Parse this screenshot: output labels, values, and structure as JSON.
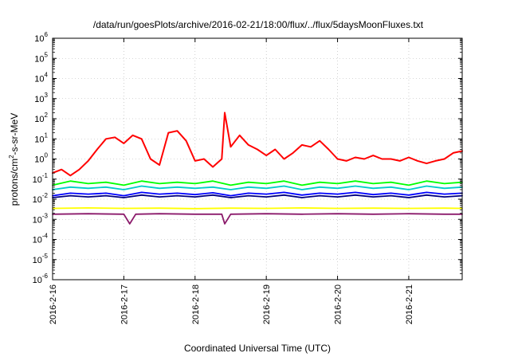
{
  "chart_data": {
    "type": "line",
    "title": "/data/run/goesPlots/archive/2016-02-21/18:00/flux/../flux/5daysMoonFluxes.txt",
    "xlabel": "Coordinated Universal Time (UTC)",
    "ylabel": "protons/cm²-s-sr-MeV",
    "ylabel_parts": {
      "pre": "protons/cm",
      "sup": "2",
      "post": "-s-sr-MeV"
    },
    "yscale": "log",
    "ylim": [
      1e-06,
      1000000.0
    ],
    "yticks": [
      {
        "base": "10",
        "exp": "-6",
        "value": 1e-06
      },
      {
        "base": "10",
        "exp": "-5",
        "value": 1e-05
      },
      {
        "base": "10",
        "exp": "-4",
        "value": 0.0001
      },
      {
        "base": "10",
        "exp": "-3",
        "value": 0.001
      },
      {
        "base": "10",
        "exp": "-2",
        "value": 0.01
      },
      {
        "base": "10",
        "exp": "-1",
        "value": 0.1
      },
      {
        "base": "10",
        "exp": "0",
        "value": 1
      },
      {
        "base": "10",
        "exp": "1",
        "value": 10
      },
      {
        "base": "10",
        "exp": "2",
        "value": 100
      },
      {
        "base": "10",
        "exp": "3",
        "value": 1000
      },
      {
        "base": "10",
        "exp": "4",
        "value": 10000
      },
      {
        "base": "10",
        "exp": "5",
        "value": 100000
      },
      {
        "base": "10",
        "exp": "6",
        "value": 1000000
      }
    ],
    "xlim": [
      "2016-02-16 00:00",
      "2016-02-21 18:00"
    ],
    "xticks": [
      "2016-2-16",
      "2016-2-17",
      "2016-2-18",
      "2016-2-19",
      "2016-2-20",
      "2016-2-21"
    ],
    "grid": true,
    "legend": "none",
    "series": [
      {
        "color": "#ff0000",
        "x": [
          "2016-02-16 00:00",
          "2016-02-16 03:00",
          "2016-02-16 06:00",
          "2016-02-16 09:00",
          "2016-02-16 12:00",
          "2016-02-16 15:00",
          "2016-02-16 18:00",
          "2016-02-16 21:00",
          "2016-02-17 00:00",
          "2016-02-17 03:00",
          "2016-02-17 06:00",
          "2016-02-17 09:00",
          "2016-02-17 12:00",
          "2016-02-17 15:00",
          "2016-02-17 18:00",
          "2016-02-17 21:00",
          "2016-02-18 00:00",
          "2016-02-18 03:00",
          "2016-02-18 06:00",
          "2016-02-18 09:00",
          "2016-02-18 10:00",
          "2016-02-18 12:00",
          "2016-02-18 15:00",
          "2016-02-18 18:00",
          "2016-02-18 21:00",
          "2016-02-19 00:00",
          "2016-02-19 03:00",
          "2016-02-19 06:00",
          "2016-02-19 09:00",
          "2016-02-19 12:00",
          "2016-02-19 15:00",
          "2016-02-19 18:00",
          "2016-02-19 21:00",
          "2016-02-20 00:00",
          "2016-02-20 03:00",
          "2016-02-20 06:00",
          "2016-02-20 09:00",
          "2016-02-20 12:00",
          "2016-02-20 15:00",
          "2016-02-20 18:00",
          "2016-02-20 21:00",
          "2016-02-21 00:00",
          "2016-02-21 03:00",
          "2016-02-21 06:00",
          "2016-02-21 09:00",
          "2016-02-21 12:00",
          "2016-02-21 15:00",
          "2016-02-21 18:00"
        ],
        "values": [
          0.2,
          0.3,
          0.15,
          0.3,
          0.8,
          3,
          10,
          12,
          6,
          15,
          10,
          1,
          0.5,
          20,
          25,
          8,
          0.8,
          1,
          0.4,
          1,
          200,
          4,
          15,
          5,
          3,
          1.5,
          3,
          1,
          2,
          5,
          4,
          8,
          3,
          1,
          0.8,
          1.2,
          1,
          1.5,
          1,
          1,
          0.8,
          1.2,
          0.8,
          0.6,
          0.8,
          1,
          2,
          2.5
        ]
      },
      {
        "color": "#00ff00",
        "x": [
          "2016-02-16 00:00",
          "2016-02-16 06:00",
          "2016-02-16 12:00",
          "2016-02-16 18:00",
          "2016-02-17 00:00",
          "2016-02-17 06:00",
          "2016-02-17 12:00",
          "2016-02-17 18:00",
          "2016-02-18 00:00",
          "2016-02-18 06:00",
          "2016-02-18 12:00",
          "2016-02-18 18:00",
          "2016-02-19 00:00",
          "2016-02-19 06:00",
          "2016-02-19 12:00",
          "2016-02-19 18:00",
          "2016-02-20 00:00",
          "2016-02-20 06:00",
          "2016-02-20 12:00",
          "2016-02-20 18:00",
          "2016-02-21 00:00",
          "2016-02-21 06:00",
          "2016-02-21 12:00",
          "2016-02-21 18:00"
        ],
        "values": [
          0.05,
          0.08,
          0.06,
          0.07,
          0.05,
          0.08,
          0.06,
          0.07,
          0.06,
          0.08,
          0.05,
          0.07,
          0.06,
          0.08,
          0.05,
          0.07,
          0.06,
          0.08,
          0.06,
          0.07,
          0.05,
          0.08,
          0.06,
          0.07
        ]
      },
      {
        "color": "#00cccc",
        "x": [
          "2016-02-16 00:00",
          "2016-02-16 06:00",
          "2016-02-16 12:00",
          "2016-02-16 18:00",
          "2016-02-17 00:00",
          "2016-02-17 06:00",
          "2016-02-17 12:00",
          "2016-02-17 18:00",
          "2016-02-18 00:00",
          "2016-02-18 06:00",
          "2016-02-18 12:00",
          "2016-02-18 18:00",
          "2016-02-19 00:00",
          "2016-02-19 06:00",
          "2016-02-19 12:00",
          "2016-02-19 18:00",
          "2016-02-20 00:00",
          "2016-02-20 06:00",
          "2016-02-20 12:00",
          "2016-02-20 18:00",
          "2016-02-21 00:00",
          "2016-02-21 06:00",
          "2016-02-21 12:00",
          "2016-02-21 18:00"
        ],
        "values": [
          0.03,
          0.04,
          0.035,
          0.04,
          0.03,
          0.045,
          0.035,
          0.04,
          0.035,
          0.04,
          0.03,
          0.04,
          0.035,
          0.045,
          0.03,
          0.04,
          0.035,
          0.045,
          0.035,
          0.04,
          0.03,
          0.045,
          0.035,
          0.04
        ]
      },
      {
        "color": "#0000ff",
        "x": [
          "2016-02-16 00:00",
          "2016-02-16 06:00",
          "2016-02-16 12:00",
          "2016-02-16 18:00",
          "2016-02-17 00:00",
          "2016-02-17 06:00",
          "2016-02-17 12:00",
          "2016-02-17 18:00",
          "2016-02-18 00:00",
          "2016-02-18 06:00",
          "2016-02-18 12:00",
          "2016-02-18 18:00",
          "2016-02-19 00:00",
          "2016-02-19 06:00",
          "2016-02-19 12:00",
          "2016-02-19 18:00",
          "2016-02-20 00:00",
          "2016-02-20 06:00",
          "2016-02-20 12:00",
          "2016-02-20 18:00",
          "2016-02-21 00:00",
          "2016-02-21 06:00",
          "2016-02-21 12:00",
          "2016-02-21 18:00"
        ],
        "values": [
          0.015,
          0.02,
          0.018,
          0.02,
          0.015,
          0.022,
          0.018,
          0.02,
          0.017,
          0.021,
          0.015,
          0.02,
          0.018,
          0.022,
          0.016,
          0.02,
          0.018,
          0.022,
          0.017,
          0.02,
          0.016,
          0.022,
          0.018,
          0.02
        ]
      },
      {
        "color": "#000080",
        "x": [
          "2016-02-16 00:00",
          "2016-02-16 06:00",
          "2016-02-16 12:00",
          "2016-02-16 18:00",
          "2016-02-17 00:00",
          "2016-02-17 06:00",
          "2016-02-17 12:00",
          "2016-02-17 18:00",
          "2016-02-18 00:00",
          "2016-02-18 06:00",
          "2016-02-18 12:00",
          "2016-02-18 18:00",
          "2016-02-19 00:00",
          "2016-02-19 06:00",
          "2016-02-19 12:00",
          "2016-02-19 18:00",
          "2016-02-20 00:00",
          "2016-02-20 06:00",
          "2016-02-20 12:00",
          "2016-02-20 18:00",
          "2016-02-21 00:00",
          "2016-02-21 06:00",
          "2016-02-21 12:00",
          "2016-02-21 18:00"
        ],
        "values": [
          0.012,
          0.015,
          0.013,
          0.015,
          0.012,
          0.016,
          0.013,
          0.015,
          0.013,
          0.016,
          0.012,
          0.015,
          0.013,
          0.016,
          0.012,
          0.015,
          0.013,
          0.016,
          0.013,
          0.015,
          0.012,
          0.016,
          0.013,
          0.015
        ]
      },
      {
        "color": "#ffff00",
        "x": [
          "2016-02-16 00:00",
          "2016-02-16 12:00",
          "2016-02-17 00:00",
          "2016-02-17 12:00",
          "2016-02-18 00:00",
          "2016-02-18 12:00",
          "2016-02-19 00:00",
          "2016-02-19 12:00",
          "2016-02-20 00:00",
          "2016-02-20 12:00",
          "2016-02-21 00:00",
          "2016-02-21 12:00",
          "2016-02-21 18:00"
        ],
        "values": [
          0.0035,
          0.0037,
          0.0035,
          0.0036,
          0.0034,
          0.0036,
          0.0035,
          0.0037,
          0.0035,
          0.0036,
          0.0035,
          0.0036,
          0.0035
        ]
      },
      {
        "color": "#8b1a6b",
        "x": [
          "2016-02-16 00:00",
          "2016-02-16 12:00",
          "2016-02-17 00:00",
          "2016-02-17 02:00",
          "2016-02-17 04:00",
          "2016-02-17 12:00",
          "2016-02-18 00:00",
          "2016-02-18 09:00",
          "2016-02-18 10:00",
          "2016-02-18 12:00",
          "2016-02-19 00:00",
          "2016-02-19 12:00",
          "2016-02-20 00:00",
          "2016-02-20 12:00",
          "2016-02-21 00:00",
          "2016-02-21 12:00",
          "2016-02-21 18:00"
        ],
        "values": [
          0.0018,
          0.0019,
          0.0018,
          0.0006,
          0.0018,
          0.0019,
          0.0018,
          0.0018,
          0.0006,
          0.0018,
          0.0019,
          0.0018,
          0.0019,
          0.0018,
          0.0019,
          0.0018,
          0.0018
        ]
      }
    ]
  }
}
